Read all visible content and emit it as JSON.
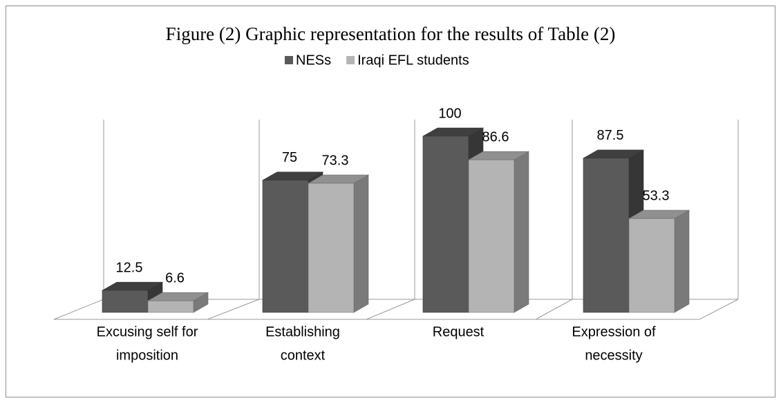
{
  "chart_data": {
    "type": "bar3d",
    "title": "Figure (2) Graphic representation for the results of Table (2)",
    "categories": [
      [
        "Excusing self for",
        "imposition"
      ],
      [
        "Establishing",
        "context"
      ],
      [
        "Request"
      ],
      [
        "Expression of",
        "necessity"
      ]
    ],
    "series": [
      {
        "name": "NESs",
        "color": "#5a5a5a",
        "values": [
          12.5,
          75,
          100,
          87.5
        ]
      },
      {
        "name": "Iraqi EFL students",
        "color": "#b4b4b4",
        "values": [
          6.6,
          73.3,
          86.6,
          53.3
        ]
      }
    ],
    "ylim": [
      0,
      100
    ],
    "legend": "top"
  }
}
